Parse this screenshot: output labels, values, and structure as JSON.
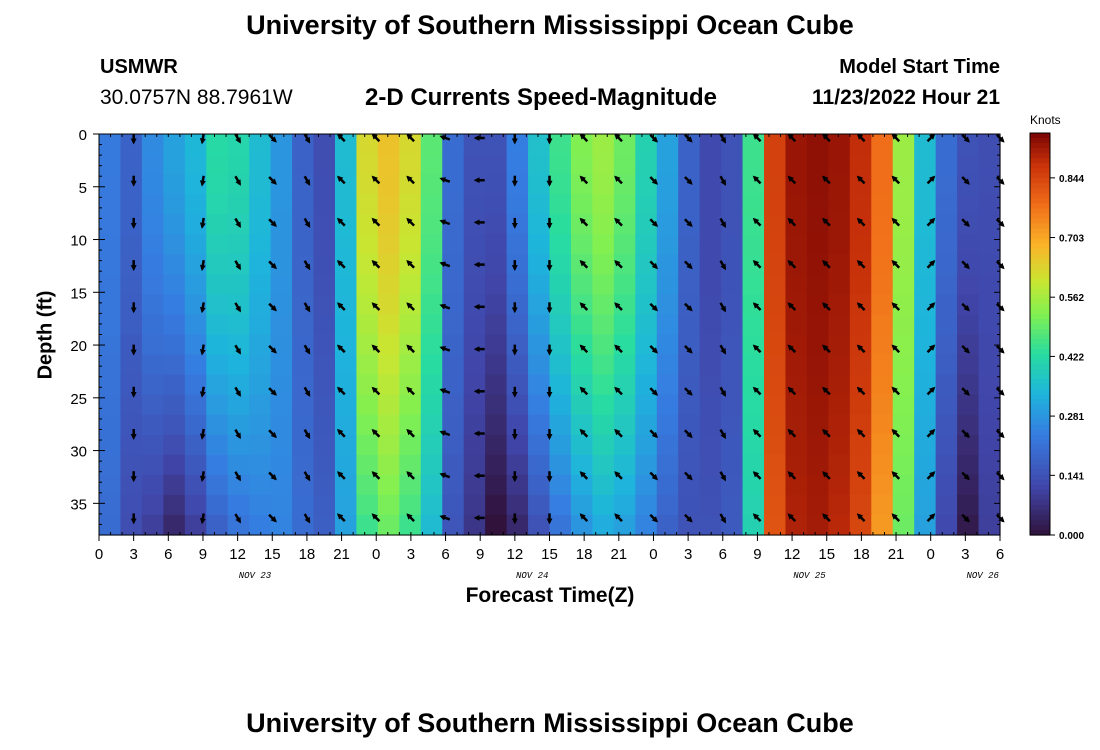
{
  "header": {
    "title": "University of Southern Mississippi Ocean Cube",
    "station": "USMWR",
    "coordinates": "30.0757N  88.7961W",
    "subtitle": "2-D Currents Speed-Magnitude",
    "model_label": "Model Start Time",
    "model_time": "11/23/2022 Hour 21"
  },
  "footer": {
    "title": "University of Southern Mississippi Ocean Cube"
  },
  "chart_data": {
    "type": "heatmap",
    "title": "2-D Currents Speed-Magnitude",
    "xlabel": "Forecast Time(Z)",
    "ylabel": "Depth (ft)",
    "x_tick_labels": [
      "0",
      "3",
      "6",
      "9",
      "12",
      "15",
      "18",
      "21",
      "0",
      "3",
      "6",
      "9",
      "12",
      "15",
      "18",
      "21",
      "0",
      "3",
      "6",
      "9",
      "12",
      "15",
      "18",
      "21",
      "0",
      "3",
      "6"
    ],
    "date_labels": [
      {
        "label": "NOV 23",
        "hour_index": 4.5
      },
      {
        "label": "NOV 24",
        "hour_index": 12.5
      },
      {
        "label": "NOV 25",
        "hour_index": 20.5
      },
      {
        "label": "NOV 26",
        "hour_index": 25.5
      }
    ],
    "y_ticks": [
      0,
      5,
      10,
      15,
      20,
      25,
      30,
      35
    ],
    "ylim": [
      0,
      38
    ],
    "xlim": [
      0,
      78
    ],
    "colorbar": {
      "label": "Knots",
      "ticks": [
        0.0,
        0.141,
        0.281,
        0.422,
        0.562,
        0.703,
        0.844
      ],
      "tick_labels": [
        "0.000",
        "0.141",
        "0.281",
        "0.422",
        "0.562",
        "0.703",
        "0.844"
      ],
      "range": [
        0.0,
        0.95
      ]
    },
    "surface_speed_knots": [
      0.23,
      0.18,
      0.26,
      0.3,
      0.34,
      0.42,
      0.41,
      0.35,
      0.28,
      0.18,
      0.13,
      0.35,
      0.62,
      0.66,
      0.62,
      0.48,
      0.2,
      0.14,
      0.14,
      0.24,
      0.36,
      0.45,
      0.52,
      0.55,
      0.5,
      0.4,
      0.3,
      0.18,
      0.12,
      0.14,
      0.45,
      0.85,
      0.92,
      0.93,
      0.92,
      0.88,
      0.78,
      0.55,
      0.35,
      0.2,
      0.14,
      0.13
    ],
    "bottom_speed_knots": [
      0.2,
      0.13,
      0.1,
      0.05,
      0.1,
      0.18,
      0.22,
      0.24,
      0.25,
      0.2,
      0.17,
      0.3,
      0.45,
      0.5,
      0.45,
      0.35,
      0.15,
      0.08,
      0.0,
      0.05,
      0.14,
      0.22,
      0.28,
      0.32,
      0.3,
      0.25,
      0.18,
      0.14,
      0.14,
      0.16,
      0.4,
      0.82,
      0.9,
      0.91,
      0.89,
      0.84,
      0.72,
      0.5,
      0.3,
      0.12,
      0.02,
      0.1
    ],
    "vector_depths_ft": [
      0,
      4,
      8,
      12,
      16,
      20,
      24,
      28,
      32,
      36
    ],
    "vector_hours": [
      3,
      9,
      12,
      15,
      18,
      21,
      24,
      27,
      30,
      33,
      36,
      39,
      42,
      45,
      48,
      51,
      54,
      57,
      60,
      63,
      66,
      69,
      72,
      75,
      78
    ],
    "vector_direction_deg_by_hour": [
      270,
      260,
      300,
      315,
      300,
      135,
      135,
      135,
      160,
      180,
      270,
      270,
      135,
      135,
      315,
      315,
      300,
      135,
      135,
      135,
      135,
      135,
      45,
      315,
      315
    ]
  }
}
